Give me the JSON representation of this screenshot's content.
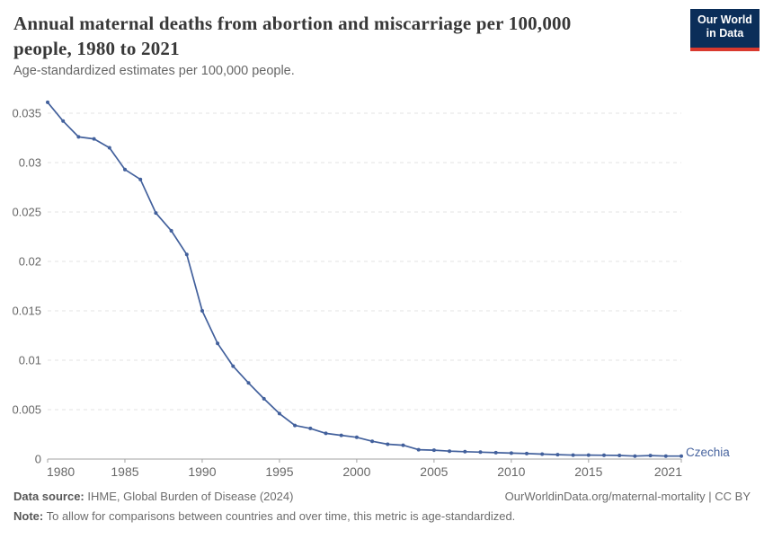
{
  "logo": {
    "line1": "Our World",
    "line2": "in Data"
  },
  "colors": {
    "line": "#42609c",
    "series_label": "#4a66a0",
    "gridline": "#e3e3e3",
    "axis": "#a3a3a3",
    "tick_label": "#686868",
    "logo_bg": "#0b2e59",
    "logo_accent": "#d9392e"
  },
  "header": {
    "title_line1": "Annual maternal deaths from abortion and miscarriage per 100,000",
    "title_line2": "people, 1980 to 2021"
  },
  "chart_data": {
    "type": "line",
    "title": "Annual maternal deaths from abortion and miscarriage per 100,000 people, 1980 to 2021",
    "subtitle": "Age-standardized estimates per 100,000 people.",
    "xlabel": "",
    "ylabel": "",
    "xlim": [
      1980,
      2021
    ],
    "ylim": [
      0,
      0.035
    ],
    "grid": "horizontal-dashed",
    "legend_position": "line-end-label",
    "xticks": {
      "values": [
        1980,
        1985,
        1990,
        1995,
        2000,
        2005,
        2010,
        2015,
        2021
      ],
      "labels": [
        "1980",
        "1985",
        "1990",
        "1995",
        "2000",
        "2005",
        "2010",
        "2015",
        "2021"
      ]
    },
    "yticks": {
      "values": [
        0,
        0.005,
        0.01,
        0.015,
        0.02,
        0.025,
        0.03,
        0.035
      ],
      "labels": [
        "0",
        "0.005",
        "0.01",
        "0.015",
        "0.02",
        "0.025",
        "0.03",
        "0.035"
      ]
    },
    "series": [
      {
        "name": "Czechia",
        "color": "#42609c",
        "x": [
          1980,
          1981,
          1982,
          1983,
          1984,
          1985,
          1986,
          1987,
          1988,
          1989,
          1990,
          1991,
          1992,
          1993,
          1994,
          1995,
          1996,
          1997,
          1998,
          1999,
          2000,
          2001,
          2002,
          2003,
          2004,
          2005,
          2006,
          2007,
          2008,
          2009,
          2010,
          2011,
          2012,
          2013,
          2014,
          2015,
          2016,
          2017,
          2018,
          2019,
          2020,
          2021
        ],
        "y": [
          0.0361,
          0.0342,
          0.0326,
          0.0324,
          0.0315,
          0.0293,
          0.0283,
          0.0249,
          0.0231,
          0.0207,
          0.015,
          0.0117,
          0.0094,
          0.0077,
          0.0061,
          0.0046,
          0.0034,
          0.0031,
          0.0026,
          0.0024,
          0.0022,
          0.0018,
          0.0015,
          0.0014,
          0.00095,
          0.0009,
          0.0008,
          0.00075,
          0.0007,
          0.00065,
          0.0006,
          0.00055,
          0.0005,
          0.00045,
          0.0004,
          0.0004,
          0.00038,
          0.00036,
          0.0003,
          0.00035,
          0.0003,
          0.0003
        ]
      }
    ]
  },
  "footer": {
    "source_label": "Data source:",
    "source_text": " IHME, Global Burden of Disease (2024)",
    "right_text": "OurWorldinData.org/maternal-mortality | CC BY",
    "note_label": "Note:",
    "note_text": " To allow for comparisons between countries and over time, this metric is age-standardized."
  }
}
